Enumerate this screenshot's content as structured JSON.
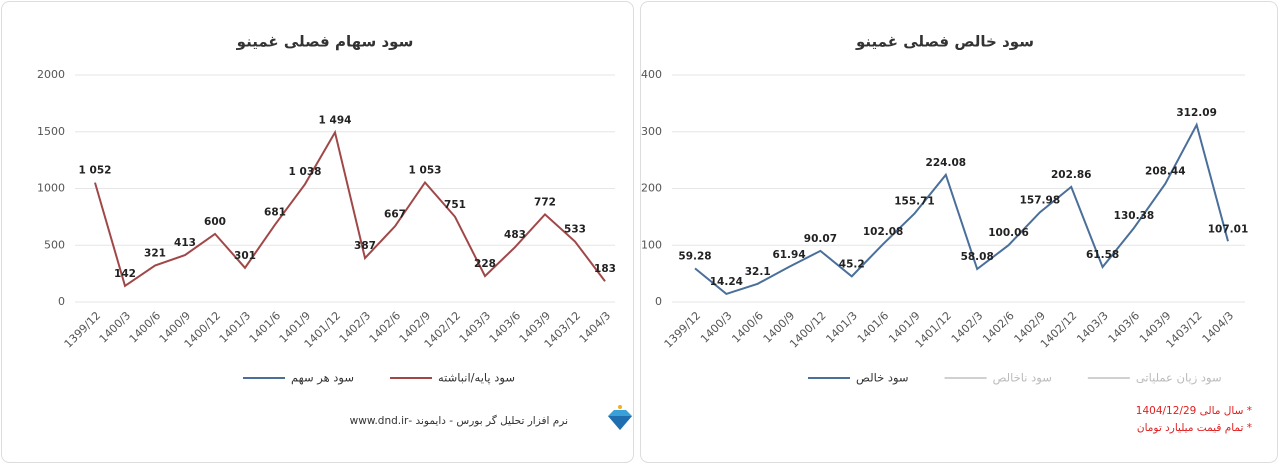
{
  "chart_data": [
    {
      "type": "line",
      "title": "سود سهام فصلی غمینو",
      "categories": [
        "1399/12",
        "1400/3",
        "1400/6",
        "1400/9",
        "1400/12",
        "1401/3",
        "1401/6",
        "1401/9",
        "1401/12",
        "1402/3",
        "1402/6",
        "1402/9",
        "1402/12",
        "1403/3",
        "1403/6",
        "1403/9",
        "1403/12",
        "1404/3"
      ],
      "series": [
        {
          "name": "سود هر سهم",
          "color": "#4a6f9a",
          "values": [
            null,
            null,
            null,
            null,
            null,
            null,
            null,
            null,
            null,
            null,
            null,
            null,
            null,
            null,
            null,
            null,
            null,
            null
          ]
        },
        {
          "name": "سود پایه/انباشته",
          "color": "#a04848",
          "values": [
            1052,
            142,
            321,
            413,
            600,
            301,
            681,
            1038,
            1494,
            387,
            667,
            1053,
            751,
            228,
            483,
            772,
            533,
            183
          ],
          "value_labels": [
            "1 052",
            "142",
            "321",
            "413",
            "600",
            "301",
            "681",
            "1 038",
            "1 494",
            "387",
            "667",
            "1 053",
            "751",
            "228",
            "483",
            "772",
            "533",
            "183"
          ]
        }
      ],
      "ylim": [
        0,
        2000
      ],
      "yticks": [
        0,
        500,
        1000,
        1500,
        2000
      ],
      "grid": true
    },
    {
      "type": "line",
      "title": "سود خالص فصلی غمینو",
      "categories": [
        "1399/12",
        "1400/3",
        "1400/6",
        "1400/9",
        "1400/12",
        "1401/3",
        "1401/6",
        "1401/9",
        "1401/12",
        "1402/3",
        "1402/6",
        "1402/9",
        "1402/12",
        "1403/3",
        "1403/6",
        "1403/9",
        "1403/12",
        "1404/3"
      ],
      "series": [
        {
          "name": "سود خالص",
          "color": "#4a6f9a",
          "values": [
            59.28,
            14.24,
            32.1,
            61.94,
            90.07,
            45.2,
            102.08,
            155.71,
            224.08,
            58.08,
            100.06,
            157.98,
            202.86,
            61.58,
            130.38,
            208.44,
            312.09,
            107.01
          ]
        },
        {
          "name": "سود ناخالص",
          "color": "#d0d0d0",
          "values": [
            null,
            null,
            null,
            null,
            null,
            null,
            null,
            null,
            null,
            null,
            null,
            null,
            null,
            null,
            null,
            null,
            null,
            null
          ]
        },
        {
          "name": "سود زیان عملیاتی",
          "color": "#d0d0d0",
          "values": [
            null,
            null,
            null,
            null,
            null,
            null,
            null,
            null,
            null,
            null,
            null,
            null,
            null,
            null,
            null,
            null,
            null,
            null
          ]
        }
      ],
      "ylim": [
        0,
        400
      ],
      "yticks": [
        0,
        100,
        200,
        300,
        400
      ],
      "grid": true
    }
  ],
  "footer": "نرم افزار تحلیل گر بورس - دایموند -www.dnd.ir",
  "notes": [
    "* سال مالی 1404/12/29",
    "* تمام قیمت میلیارد تومان"
  ]
}
